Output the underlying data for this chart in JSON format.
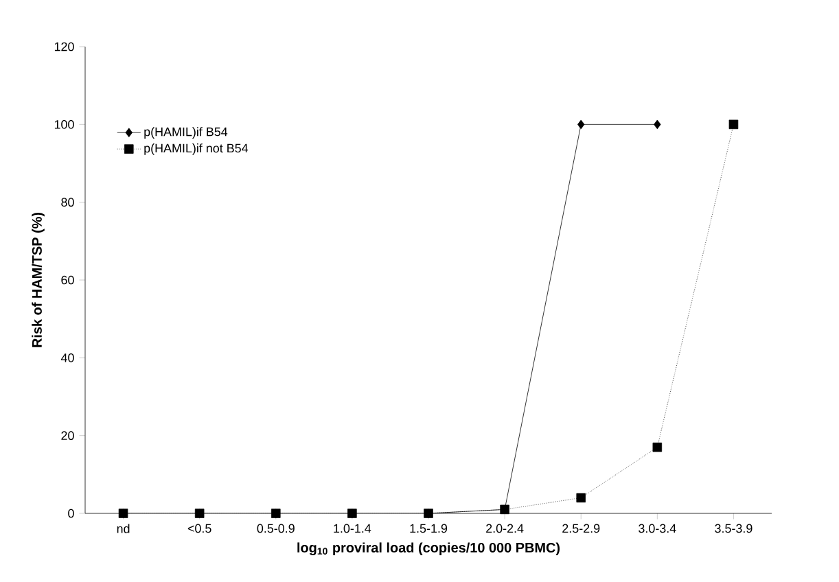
{
  "chart_data": {
    "type": "line",
    "xlabel": "**log$_{10}$ proviral load (copies/10 000 PBMC)**",
    "ylabel": "Risk of HAM/TSP (%)",
    "categories": [
      "nd",
      "<0.5",
      "0.5-0.9",
      "1.0-1.4",
      "1.5-1.9",
      "2.0-2.4",
      "2.5-2.9",
      "3.0-3.4",
      "3.5-3.9"
    ],
    "series": [
      {
        "name": "p(HAMIL)if B54",
        "color": "#000000",
        "marker": "diamond",
        "line_style": "solid",
        "values": [
          0,
          0,
          0,
          0,
          0,
          1,
          100,
          100,
          null
        ]
      },
      {
        "name": "p(HAMIL)if not B54",
        "color": "#000000",
        "marker": "square",
        "line_style": "dotted",
        "values": [
          0,
          0,
          0,
          0,
          0,
          1,
          4,
          17,
          100
        ]
      }
    ],
    "ylim": [
      0,
      120
    ],
    "yticks": [
      0,
      20,
      40,
      60,
      80,
      100,
      120
    ],
    "grid": false,
    "legend": "top left"
  }
}
